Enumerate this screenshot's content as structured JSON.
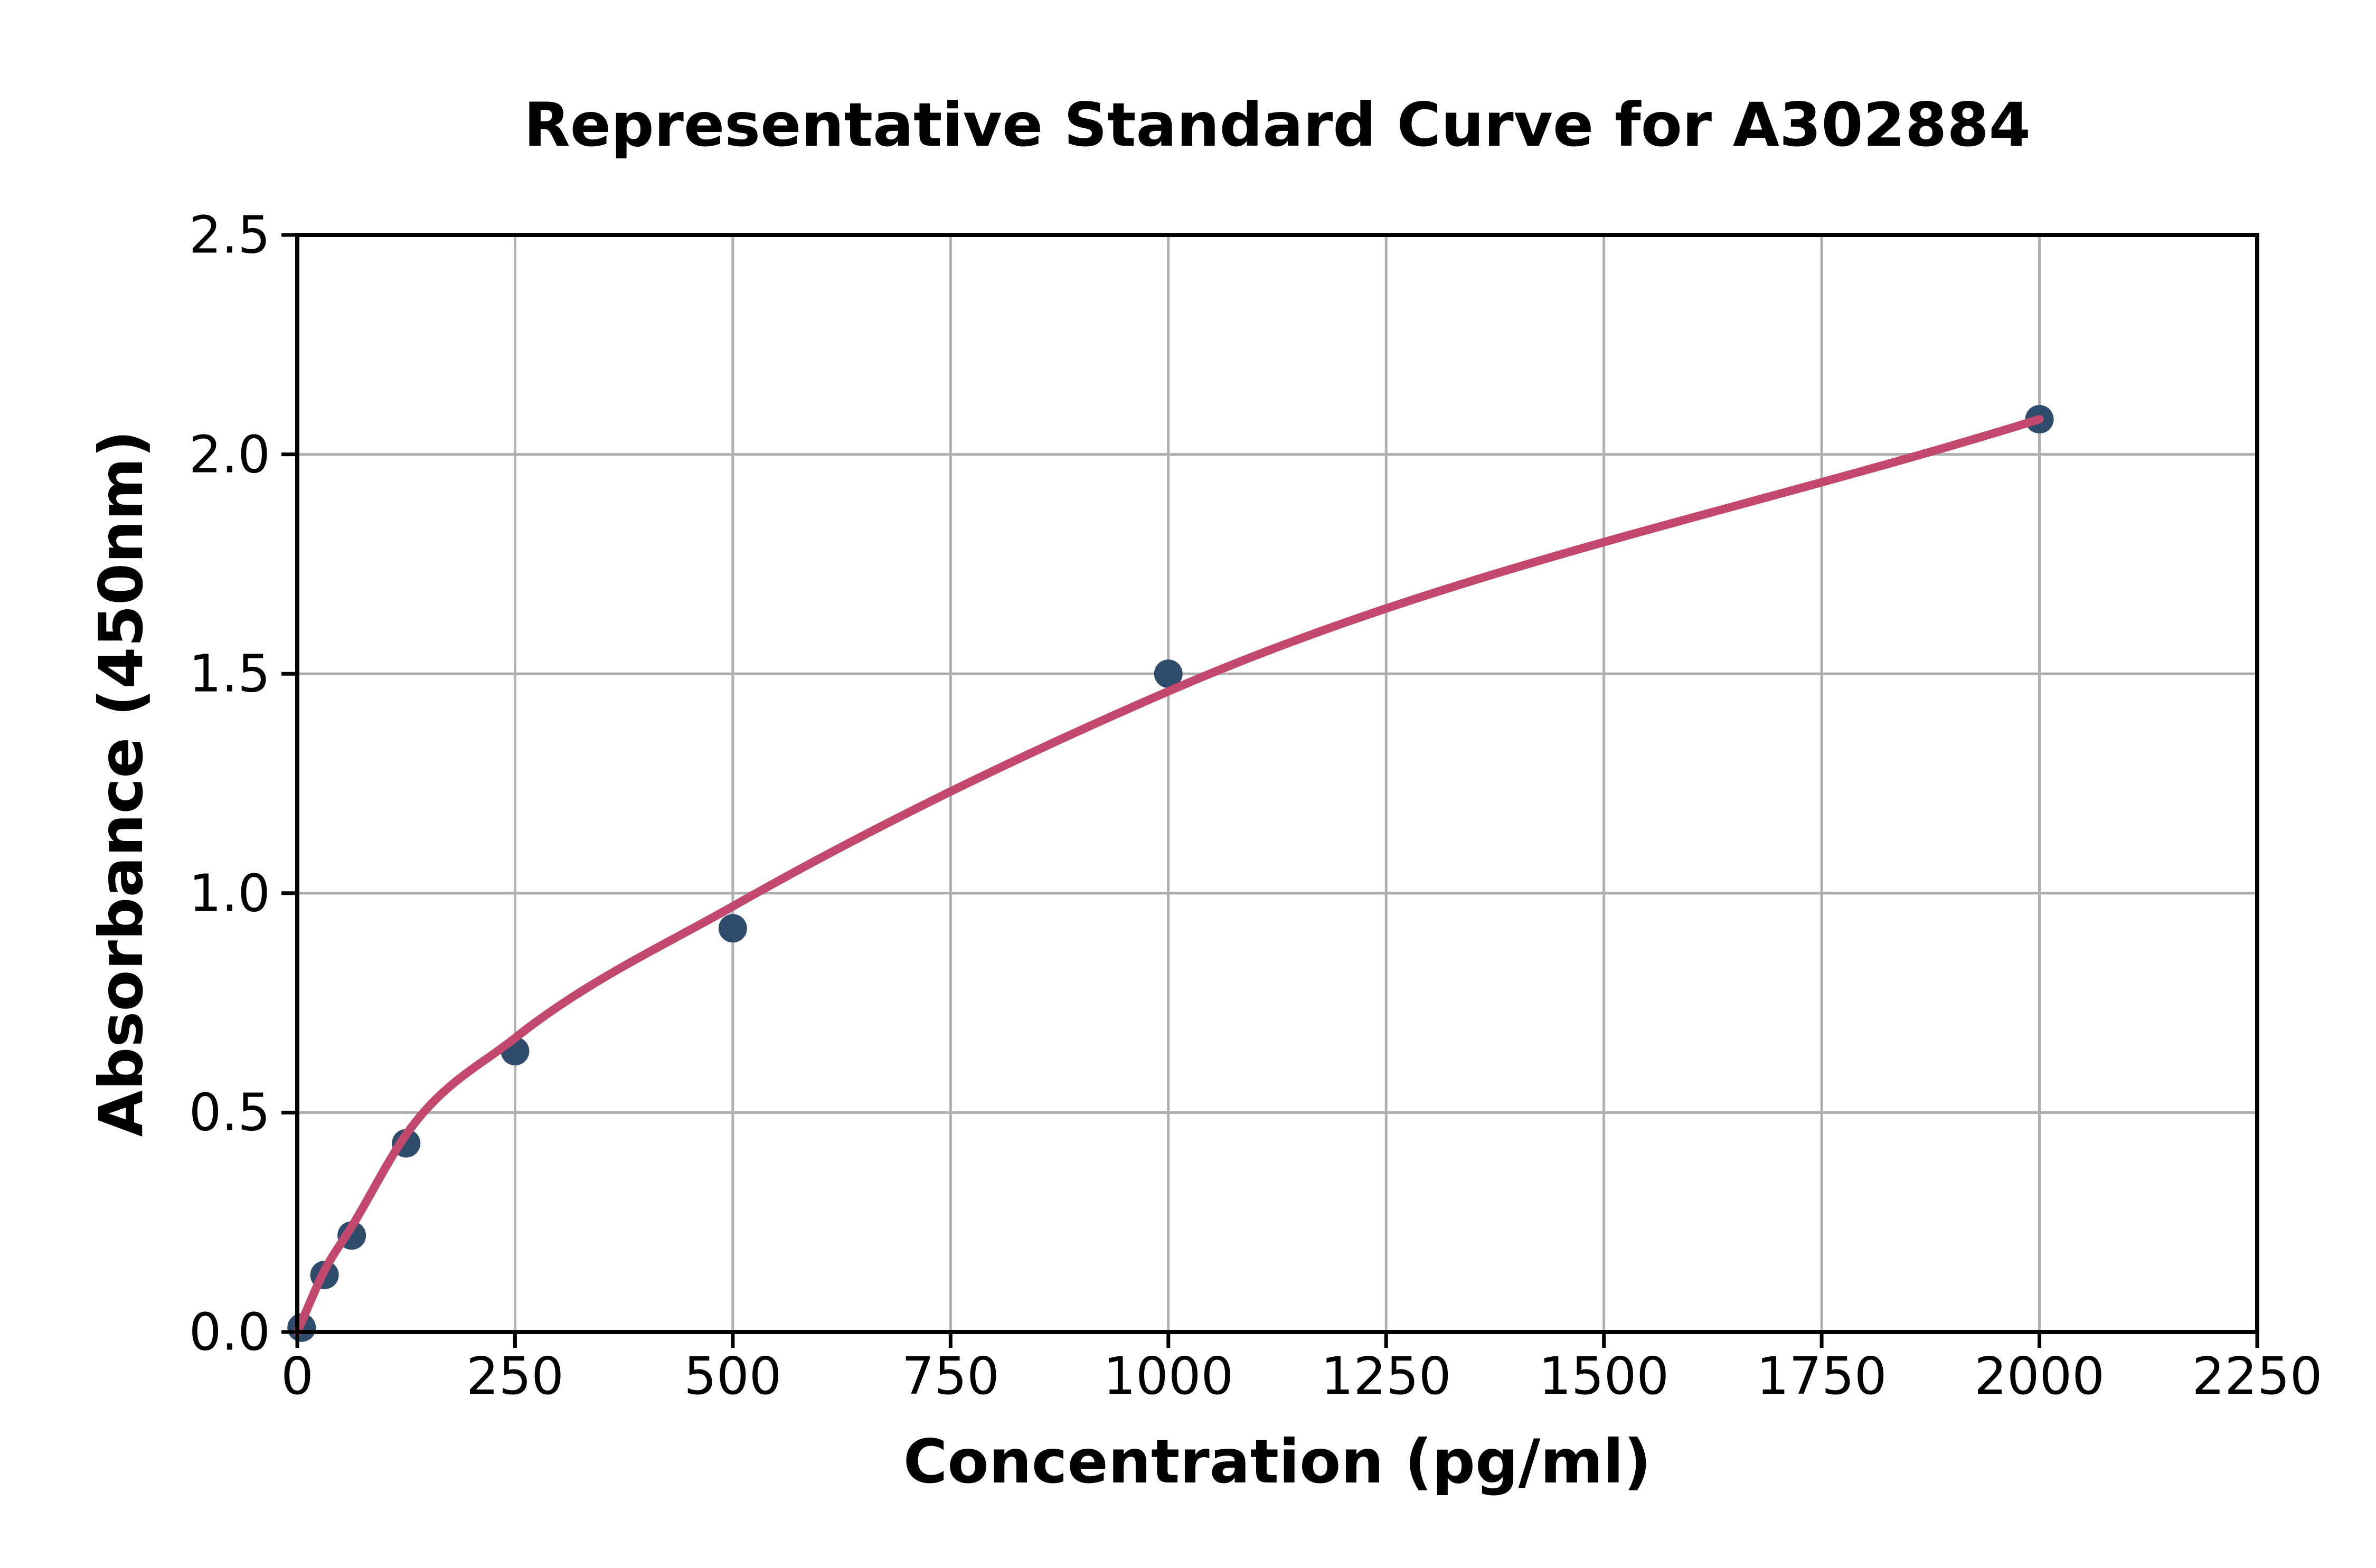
{
  "chart_data": {
    "type": "scatter",
    "title": "Representative Standard Curve for A302884",
    "xlabel": "Concentration (pg/ml)",
    "ylabel": "Absorbance (450nm)",
    "xlim": [
      0,
      2250
    ],
    "ylim": [
      0,
      2.5
    ],
    "grid": true,
    "legend": false,
    "x_ticks": {
      "values": [
        0,
        250,
        500,
        750,
        1000,
        1250,
        1500,
        1750,
        2000,
        2250
      ],
      "labels": [
        "0",
        "250",
        "500",
        "750",
        "1000",
        "1250",
        "1500",
        "1750",
        "2000",
        "2250"
      ]
    },
    "y_ticks": {
      "values": [
        0,
        0.5,
        1.0,
        1.5,
        2.0,
        2.5
      ],
      "labels": [
        "0.0",
        "0.5",
        "1.0",
        "1.5",
        "2.0",
        "2.5"
      ]
    },
    "series": [
      {
        "name": "standard-points",
        "type": "scatter",
        "points": [
          {
            "x": 5,
            "y": 0.01
          },
          {
            "x": 31.25,
            "y": 0.13
          },
          {
            "x": 62.5,
            "y": 0.22
          },
          {
            "x": 125,
            "y": 0.43
          },
          {
            "x": 250,
            "y": 0.64
          },
          {
            "x": 500,
            "y": 0.92
          },
          {
            "x": 1000,
            "y": 1.5
          },
          {
            "x": 2000,
            "y": 2.08
          }
        ]
      },
      {
        "name": "fitted-curve",
        "type": "line",
        "points": [
          {
            "x": 0,
            "y": 0.0
          },
          {
            "x": 31.25,
            "y": 0.14
          },
          {
            "x": 62.5,
            "y": 0.24
          },
          {
            "x": 125,
            "y": 0.45
          },
          {
            "x": 250,
            "y": 0.67
          },
          {
            "x": 500,
            "y": 0.97
          },
          {
            "x": 1000,
            "y": 1.46
          },
          {
            "x": 2000,
            "y": 2.08
          }
        ]
      }
    ],
    "colors": {
      "point": "#2F4C6C",
      "curve": "#C2496D",
      "grid": "#B0B0B0",
      "axis": "#000000",
      "text": "#000000",
      "background": "#FFFFFF"
    }
  }
}
